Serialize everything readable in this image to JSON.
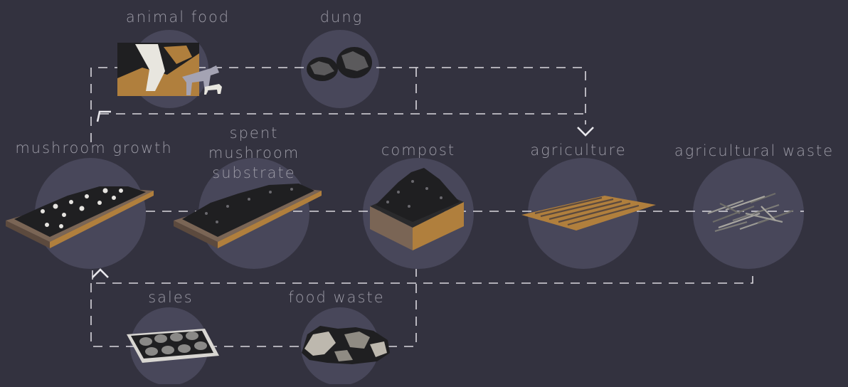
{
  "nodes": {
    "animal_food": {
      "label": "animal food"
    },
    "dung": {
      "label": "dung"
    },
    "mushroom_growth": {
      "label": "mushroom growth"
    },
    "spent_substrate": {
      "label_lines": [
        "spent",
        "mushroom",
        "substrate"
      ]
    },
    "compost": {
      "label": "compost"
    },
    "agriculture": {
      "label": "agriculture"
    },
    "agricultural_waste": {
      "label": "agricultural waste"
    },
    "sales": {
      "label": "sales"
    },
    "food_waste": {
      "label": "food waste"
    }
  },
  "colors": {
    "background": "#33323f",
    "circle": "#48475a",
    "line": "#d9d8de",
    "label": "#9c9ba6",
    "wood": "#b07f3d",
    "dark_material": "#1f1f21"
  },
  "icons": {
    "arrows": [
      "arrow-up-right-icon",
      "arrow-down-icon",
      "arrow-up-icon"
    ]
  }
}
